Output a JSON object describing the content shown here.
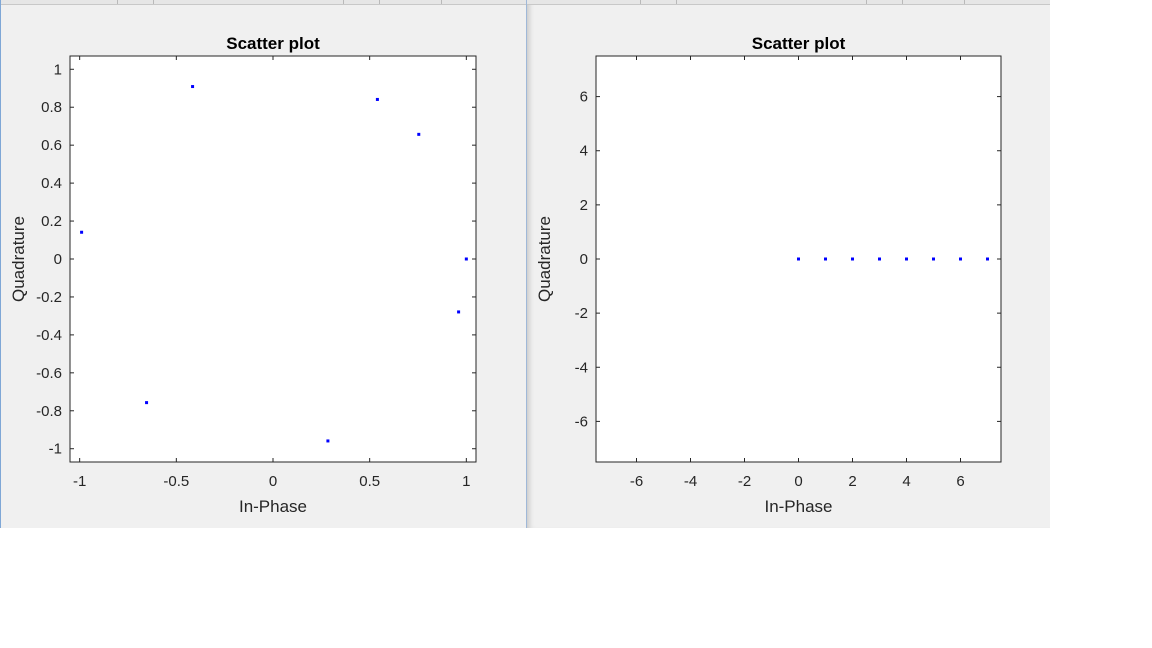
{
  "windows": [
    {
      "id": "left"
    },
    {
      "id": "right"
    }
  ],
  "chart_data": [
    {
      "type": "scatter",
      "title": "Scatter plot",
      "xlabel": "In-Phase",
      "ylabel": "Quadrature",
      "xlim": [
        -1.05,
        1.05
      ],
      "ylim": [
        -1.07,
        1.07
      ],
      "xticks": [
        -1,
        -0.5,
        0,
        0.5,
        1
      ],
      "xtick_labels": [
        "-1",
        "-0.5",
        "0",
        "0.5",
        "1"
      ],
      "yticks": [
        -1,
        -0.8,
        -0.6,
        -0.4,
        -0.2,
        0,
        0.2,
        0.4,
        0.6,
        0.8,
        1
      ],
      "ytick_labels": [
        "-1",
        "-0.8",
        "-0.6",
        "-0.4",
        "-0.2",
        "0",
        "0.2",
        "0.4",
        "0.6",
        "0.8",
        "1"
      ],
      "grid": false,
      "marker_color": "#0000ff",
      "series": [
        {
          "x": [
            1.0,
            0.754,
            0.54,
            -0.416,
            -0.99,
            -0.654,
            0.284,
            0.96
          ],
          "y": [
            0.0,
            0.657,
            0.841,
            0.909,
            0.141,
            -0.757,
            -0.959,
            -0.279
          ]
        }
      ]
    },
    {
      "type": "scatter",
      "title": "Scatter plot",
      "xlabel": "In-Phase",
      "ylabel": "Quadrature",
      "xlim": [
        -7.5,
        7.5
      ],
      "ylim": [
        -7.5,
        7.5
      ],
      "xticks": [
        -6,
        -4,
        -2,
        0,
        2,
        4,
        6
      ],
      "xtick_labels": [
        "-6",
        "-4",
        "-2",
        "0",
        "2",
        "4",
        "6"
      ],
      "yticks": [
        -6,
        -4,
        -2,
        0,
        2,
        4,
        6
      ],
      "ytick_labels": [
        "-6",
        "-4",
        "-2",
        "0",
        "2",
        "4",
        "6"
      ],
      "grid": false,
      "marker_color": "#0000ff",
      "series": [
        {
          "x": [
            0,
            1,
            2,
            3,
            4,
            5,
            6,
            7
          ],
          "y": [
            0,
            0,
            0,
            0,
            0,
            0,
            0,
            0
          ]
        }
      ]
    }
  ]
}
